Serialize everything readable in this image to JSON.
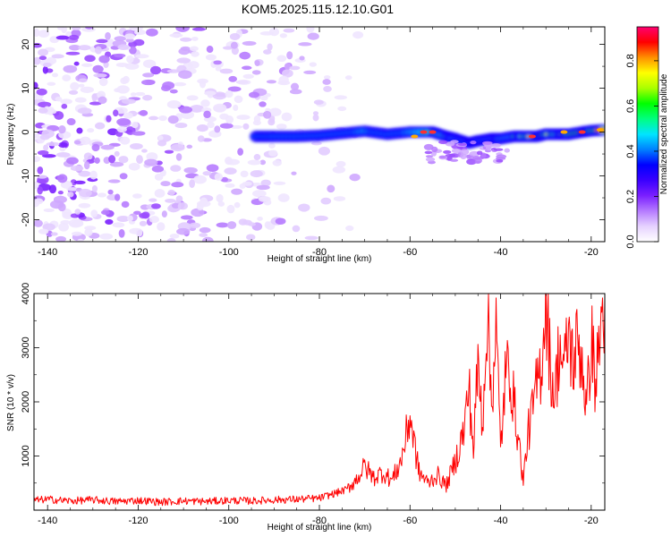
{
  "title": "KOM5.2025.115.12.10.G01",
  "chart_data": [
    {
      "type": "heatmap",
      "title": "KOM5.2025.115.12.10.G01",
      "xlabel": "Height of straight line (km)",
      "ylabel": "Frequency (Hz)",
      "xlim": [
        -143,
        -17
      ],
      "ylim": [
        -25,
        24
      ],
      "xticks": [
        -140,
        -120,
        -100,
        -80,
        -60,
        -40,
        -20
      ],
      "yticks": [
        -20,
        -10,
        0,
        10,
        20
      ],
      "colorbar": {
        "label": "Normalized spectral amplitude",
        "range": [
          0,
          0.95
        ],
        "ticks": [
          "0.0",
          "0.2",
          "0.4",
          "0.6",
          "0.8"
        ],
        "colormap": [
          "#ffffff",
          "#e6d2ff",
          "#b57bff",
          "#7a1fff",
          "#3a00ff",
          "#0000ff",
          "#0080ff",
          "#00e5ff",
          "#00ff80",
          "#00ff00",
          "#aaff00",
          "#ffff00",
          "#ff9000",
          "#ff0000",
          "#ff0070"
        ]
      },
      "noise_region_x": [
        -143,
        -65
      ],
      "signal_band": {
        "x": [
          -94,
          -90,
          -85,
          -80,
          -75,
          -70,
          -65,
          -60,
          -55,
          -52,
          -50,
          -47,
          -45,
          -42,
          -40,
          -37,
          -35,
          -32,
          -30,
          -27,
          -25,
          -22,
          -20,
          -17
        ],
        "center_hz": [
          -1,
          -1,
          -1,
          -0.8,
          -0.3,
          0.2,
          -0.5,
          0,
          0,
          -1,
          -1.5,
          -2.5,
          -2,
          -1.5,
          -1.5,
          -1,
          -1,
          -1,
          -0.5,
          -0.5,
          -0.5,
          0,
          0.3,
          0.5
        ],
        "amplitude": [
          0.25,
          0.3,
          0.3,
          0.35,
          0.45,
          0.55,
          0.4,
          0.55,
          0.7,
          0.6,
          0.5,
          0.45,
          0.45,
          0.5,
          0.55,
          0.6,
          0.7,
          0.85,
          0.75,
          0.7,
          0.75,
          0.85,
          0.8,
          0.9
        ]
      }
    },
    {
      "type": "line",
      "xlabel": "Height of straight line (km)",
      "ylabel": "SNR (10 * v/v)",
      "xlim": [
        -143,
        -17
      ],
      "ylim": [
        0,
        4000
      ],
      "xticks": [
        -140,
        -120,
        -100,
        -80,
        -60,
        -40,
        -20
      ],
      "yticks": [
        1000,
        2000,
        3000,
        4000
      ],
      "color": "#ff0000",
      "x": [
        -143,
        -140,
        -135,
        -130,
        -125,
        -120,
        -115,
        -110,
        -105,
        -100,
        -95,
        -90,
        -85,
        -80,
        -77,
        -74,
        -72,
        -70,
        -68,
        -66,
        -64,
        -62,
        -61,
        -60,
        -59,
        -58,
        -56,
        -54,
        -52,
        -50,
        -48,
        -47,
        -46,
        -45,
        -44,
        -43,
        -42,
        -41,
        -40,
        -39,
        -38,
        -37,
        -36,
        -35,
        -34,
        -33,
        -32,
        -31,
        -30,
        -29,
        -28,
        -27,
        -26,
        -25,
        -24,
        -23,
        -22,
        -21,
        -20,
        -19,
        -18,
        -17
      ],
      "y": [
        180,
        200,
        170,
        190,
        160,
        180,
        150,
        170,
        160,
        180,
        170,
        190,
        200,
        220,
        300,
        380,
        550,
        800,
        600,
        700,
        550,
        900,
        1300,
        1750,
        1200,
        700,
        500,
        650,
        450,
        900,
        1500,
        2300,
        1100,
        2700,
        1600,
        3700,
        2000,
        3400,
        1100,
        2400,
        2700,
        1900,
        1300,
        500,
        1400,
        1800,
        2300,
        2700,
        4000,
        2600,
        2100,
        3100,
        2500,
        3300,
        2700,
        3100,
        2800,
        1800,
        3200,
        2300,
        3300,
        3900
      ]
    }
  ]
}
